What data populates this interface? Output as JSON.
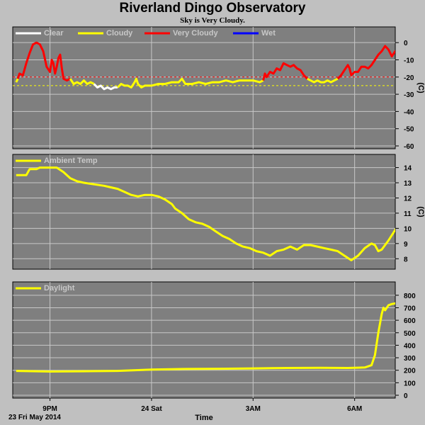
{
  "title": "Riverland Dingo Observatory",
  "subtitle": "Sky is Very Cloudy.",
  "colors": {
    "background": "#c0c0c0",
    "panel": "#7f7f7f",
    "grid": "#c8c8c8",
    "clear": "#ffffff",
    "cloudy": "#ffff00",
    "very_cloudy": "#ff0000",
    "wet": "#0000ff"
  },
  "x_axis": {
    "title": "Time",
    "date_label": "23 Fri May 2014",
    "range_hours": [
      19.9,
      31.2
    ],
    "ticks": [
      {
        "label": "9PM",
        "hour": 21
      },
      {
        "label": "24 Sat",
        "hour": 24
      },
      {
        "label": "3AM",
        "hour": 27
      },
      {
        "label": "6AM",
        "hour": 30
      }
    ]
  },
  "chart_data": [
    {
      "type": "line",
      "ylabel": "(C)",
      "ylim": [
        -60,
        5
      ],
      "yticks": [
        0,
        -10,
        -20,
        -30,
        -40,
        -50,
        -60
      ],
      "thresholds": [
        {
          "value": -20,
          "color": "#ff0000",
          "style": "dashed"
        },
        {
          "value": -25,
          "color": "#ffff00",
          "style": "dashed"
        }
      ],
      "legend": [
        {
          "name": "Clear",
          "color": "#ffffff"
        },
        {
          "name": "Cloudy",
          "color": "#ffff00"
        },
        {
          "name": "Very Cloudy",
          "color": "#ff0000"
        },
        {
          "name": "Wet",
          "color": "#0000ff"
        }
      ],
      "segments": [
        {
          "color": "#ffff00",
          "points": [
            [
              20.0,
              -23
            ],
            [
              20.05,
              -21
            ]
          ]
        },
        {
          "color": "#ff0000",
          "points": [
            [
              20.05,
              -21
            ],
            [
              20.1,
              -18
            ],
            [
              20.2,
              -19
            ],
            [
              20.3,
              -12
            ],
            [
              20.4,
              -6
            ],
            [
              20.5,
              -1
            ],
            [
              20.6,
              0
            ],
            [
              20.7,
              -1
            ],
            [
              20.8,
              -5
            ],
            [
              20.9,
              -14
            ],
            [
              21.0,
              -17
            ],
            [
              21.05,
              -10
            ],
            [
              21.1,
              -12
            ],
            [
              21.15,
              -18
            ],
            [
              21.2,
              -14
            ],
            [
              21.25,
              -9
            ],
            [
              21.3,
              -7
            ],
            [
              21.35,
              -15
            ],
            [
              21.4,
              -21
            ],
            [
              21.5,
              -22
            ],
            [
              21.6,
              -21
            ]
          ]
        },
        {
          "color": "#ffff00",
          "points": [
            [
              21.6,
              -21
            ],
            [
              21.7,
              -24
            ],
            [
              21.8,
              -23
            ],
            [
              21.9,
              -24
            ],
            [
              22.0,
              -22
            ],
            [
              22.1,
              -24
            ],
            [
              22.2,
              -23
            ],
            [
              22.3,
              -24
            ]
          ]
        },
        {
          "color": "#ffffff",
          "points": [
            [
              22.3,
              -24
            ],
            [
              22.4,
              -26
            ],
            [
              22.5,
              -25
            ],
            [
              22.6,
              -27
            ],
            [
              22.7,
              -26
            ],
            [
              22.8,
              -27
            ],
            [
              22.9,
              -26
            ],
            [
              23.0,
              -26
            ]
          ]
        },
        {
          "color": "#ffff00",
          "points": [
            [
              23.0,
              -26
            ],
            [
              23.1,
              -24
            ],
            [
              23.2,
              -25
            ],
            [
              23.3,
              -25
            ],
            [
              23.4,
              -26
            ],
            [
              23.5,
              -23
            ],
            [
              23.55,
              -21
            ],
            [
              23.6,
              -24
            ],
            [
              23.7,
              -26
            ],
            [
              23.8,
              -25
            ],
            [
              23.9,
              -25
            ],
            [
              24.0,
              -25
            ],
            [
              24.2,
              -24
            ],
            [
              24.4,
              -24
            ],
            [
              24.6,
              -23
            ],
            [
              24.8,
              -23
            ],
            [
              24.9,
              -21
            ],
            [
              25.0,
              -24
            ],
            [
              25.2,
              -24
            ],
            [
              25.4,
              -23
            ],
            [
              25.6,
              -24
            ],
            [
              25.8,
              -23
            ],
            [
              26.0,
              -23
            ],
            [
              26.2,
              -22
            ],
            [
              26.4,
              -23
            ],
            [
              26.6,
              -22
            ],
            [
              26.8,
              -22
            ],
            [
              27.0,
              -22
            ],
            [
              27.2,
              -23
            ],
            [
              27.3,
              -22
            ]
          ]
        },
        {
          "color": "#ff0000",
          "points": [
            [
              27.3,
              -22
            ],
            [
              27.35,
              -18
            ],
            [
              27.4,
              -20
            ],
            [
              27.5,
              -17
            ],
            [
              27.6,
              -18
            ],
            [
              27.7,
              -15
            ],
            [
              27.8,
              -16
            ],
            [
              27.9,
              -12
            ],
            [
              28.0,
              -13
            ],
            [
              28.1,
              -14
            ],
            [
              28.2,
              -13
            ],
            [
              28.3,
              -15
            ],
            [
              28.4,
              -16
            ],
            [
              28.5,
              -19
            ],
            [
              28.6,
              -21
            ]
          ]
        },
        {
          "color": "#ffff00",
          "points": [
            [
              28.6,
              -21
            ],
            [
              28.7,
              -22
            ],
            [
              28.8,
              -23
            ],
            [
              28.9,
              -22
            ],
            [
              29.0,
              -23
            ],
            [
              29.1,
              -23
            ],
            [
              29.2,
              -22
            ],
            [
              29.3,
              -23
            ],
            [
              29.4,
              -22
            ],
            [
              29.5,
              -21
            ]
          ]
        },
        {
          "color": "#ff0000",
          "points": [
            [
              29.5,
              -21
            ],
            [
              29.6,
              -19
            ],
            [
              29.7,
              -16
            ],
            [
              29.8,
              -13
            ],
            [
              29.85,
              -15
            ],
            [
              29.9,
              -19
            ],
            [
              30.0,
              -17
            ],
            [
              30.1,
              -17
            ],
            [
              30.2,
              -14
            ],
            [
              30.3,
              -14
            ],
            [
              30.4,
              -15
            ],
            [
              30.5,
              -13
            ],
            [
              30.6,
              -10
            ],
            [
              30.7,
              -7
            ],
            [
              30.8,
              -5
            ],
            [
              30.9,
              -2
            ],
            [
              31.0,
              -4
            ],
            [
              31.1,
              -8
            ],
            [
              31.2,
              -5
            ],
            [
              31.3,
              -7
            ],
            [
              31.4,
              -13
            ],
            [
              31.5,
              -11
            ],
            [
              31.6,
              -10
            ],
            [
              31.7,
              -13
            ],
            [
              31.8,
              -14
            ],
            [
              31.9,
              -12
            ],
            [
              32.0,
              -13
            ]
          ]
        }
      ]
    },
    {
      "type": "line",
      "ylabel": "(C)",
      "ylim": [
        7.5,
        14.4
      ],
      "yticks": [
        14,
        13,
        12,
        11,
        10,
        9,
        8
      ],
      "legend": [
        {
          "name": "Ambient Temp",
          "color": "#ffff00"
        }
      ],
      "segments": [
        {
          "color": "#ffff00",
          "points": [
            [
              20.0,
              13.5
            ],
            [
              20.3,
              13.5
            ],
            [
              20.4,
              13.9
            ],
            [
              20.6,
              13.9
            ],
            [
              20.7,
              14.0
            ],
            [
              21.0,
              14.0
            ],
            [
              21.2,
              14.0
            ],
            [
              21.4,
              13.7
            ],
            [
              21.6,
              13.3
            ],
            [
              21.8,
              13.1
            ],
            [
              22.0,
              13.0
            ],
            [
              22.3,
              12.9
            ],
            [
              22.6,
              12.8
            ],
            [
              22.8,
              12.7
            ],
            [
              23.0,
              12.6
            ],
            [
              23.2,
              12.4
            ],
            [
              23.4,
              12.2
            ],
            [
              23.6,
              12.1
            ],
            [
              23.8,
              12.2
            ],
            [
              24.0,
              12.2
            ],
            [
              24.2,
              12.1
            ],
            [
              24.4,
              11.9
            ],
            [
              24.6,
              11.6
            ],
            [
              24.7,
              11.3
            ],
            [
              24.9,
              11.0
            ],
            [
              25.1,
              10.6
            ],
            [
              25.3,
              10.4
            ],
            [
              25.5,
              10.3
            ],
            [
              25.7,
              10.1
            ],
            [
              25.9,
              9.8
            ],
            [
              26.1,
              9.5
            ],
            [
              26.3,
              9.3
            ],
            [
              26.5,
              9.0
            ],
            [
              26.7,
              8.8
            ],
            [
              26.9,
              8.7
            ],
            [
              27.1,
              8.5
            ],
            [
              27.3,
              8.4
            ],
            [
              27.5,
              8.2
            ],
            [
              27.7,
              8.5
            ],
            [
              27.9,
              8.6
            ],
            [
              28.1,
              8.8
            ],
            [
              28.3,
              8.6
            ],
            [
              28.5,
              8.9
            ],
            [
              28.7,
              8.9
            ],
            [
              28.9,
              8.8
            ],
            [
              29.1,
              8.7
            ],
            [
              29.3,
              8.6
            ],
            [
              29.5,
              8.5
            ],
            [
              29.7,
              8.2
            ],
            [
              29.9,
              7.9
            ],
            [
              30.1,
              8.2
            ],
            [
              30.3,
              8.7
            ],
            [
              30.5,
              9.0
            ],
            [
              30.6,
              8.9
            ],
            [
              30.7,
              8.5
            ],
            [
              30.8,
              8.6
            ],
            [
              31.0,
              9.2
            ],
            [
              31.2,
              9.9
            ],
            [
              31.4,
              10.5
            ],
            [
              31.6,
              11.0
            ],
            [
              31.8,
              11.6
            ],
            [
              31.9,
              11.8
            ],
            [
              32.0,
              12.0
            ]
          ]
        }
      ]
    },
    {
      "type": "line",
      "ylabel": "",
      "ylim": [
        0,
        850
      ],
      "yticks": [
        800,
        700,
        600,
        500,
        400,
        300,
        200,
        100,
        0
      ],
      "legend": [
        {
          "name": "Daylight",
          "color": "#ffff00"
        }
      ],
      "segments": [
        {
          "color": "#ffff00",
          "points": [
            [
              20.0,
              195
            ],
            [
              21.0,
              190
            ],
            [
              22.0,
              192
            ],
            [
              23.0,
              195
            ],
            [
              24.0,
              205
            ],
            [
              25.0,
              210
            ],
            [
              26.0,
              212
            ],
            [
              27.0,
              215
            ],
            [
              28.0,
              218
            ],
            [
              29.0,
              220
            ],
            [
              29.8,
              218
            ],
            [
              30.3,
              222
            ],
            [
              30.5,
              240
            ],
            [
              30.6,
              320
            ],
            [
              30.7,
              500
            ],
            [
              30.8,
              650
            ],
            [
              30.85,
              700
            ],
            [
              30.9,
              680
            ],
            [
              31.0,
              720
            ],
            [
              31.1,
              730
            ],
            [
              31.3,
              740
            ],
            [
              31.5,
              755
            ],
            [
              31.7,
              770
            ],
            [
              31.9,
              790
            ],
            [
              32.0,
              815
            ]
          ]
        }
      ]
    }
  ]
}
